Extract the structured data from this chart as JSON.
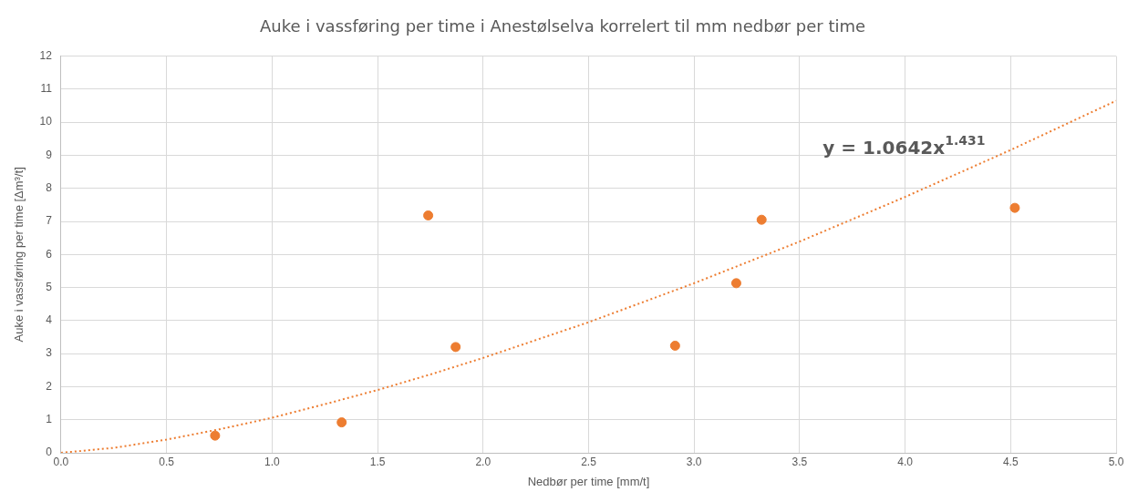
{
  "chart_data": {
    "type": "scatter",
    "title": "Auke i vassføring per time i Anestølselva korrelert til mm nedbør per time",
    "xlabel": "Nedbør per time [mm/t]",
    "ylabel": "Auke i vassføring per time [Δm³/t]",
    "series": [
      {
        "color": "#ed7d31",
        "marker": "circle",
        "x": [
          0.73,
          1.33,
          1.74,
          1.87,
          2.91,
          3.2,
          3.32,
          4.52
        ],
        "values": [
          0.52,
          0.92,
          7.18,
          3.2,
          3.24,
          5.13,
          7.05,
          7.41
        ]
      },
      {
        "type": "line",
        "color": "#ed7d31",
        "line_style": "dotted",
        "marker": "none",
        "x": [
          0,
          0.25,
          0.5,
          0.75,
          1,
          1.25,
          1.5,
          1.75,
          2,
          2.5,
          3,
          3.5,
          4,
          4.5,
          5
        ],
        "values": [
          0,
          0.15,
          0.4,
          0.71,
          1.06,
          1.47,
          1.9,
          2.37,
          2.87,
          3.95,
          5.13,
          6.39,
          7.74,
          9.16,
          10.65
        ]
      }
    ],
    "annotations": [
      "y = 1.0642x$^{1.431}$"
    ],
    "xlim": [
      0,
      5
    ],
    "xticks": [
      {
        "value": 0,
        "label": "0.0"
      },
      {
        "value": 0.5,
        "label": "0.5"
      },
      {
        "value": 1,
        "label": "1.0"
      },
      {
        "value": 1.5,
        "label": "1.5"
      },
      {
        "value": 2,
        "label": "2.0"
      },
      {
        "value": 2.5,
        "label": "2.5"
      },
      {
        "value": 3,
        "label": "3.0"
      },
      {
        "value": 3.5,
        "label": "3.5"
      },
      {
        "value": 4,
        "label": "4.0"
      },
      {
        "value": 4.5,
        "label": "4.5"
      },
      {
        "value": 5,
        "label": "5.0"
      }
    ],
    "ylim": [
      0,
      12
    ],
    "yticks": [
      0,
      1,
      2,
      3,
      4,
      5,
      6,
      7,
      8,
      9,
      10,
      11,
      12
    ],
    "grid": true,
    "legend": false
  }
}
